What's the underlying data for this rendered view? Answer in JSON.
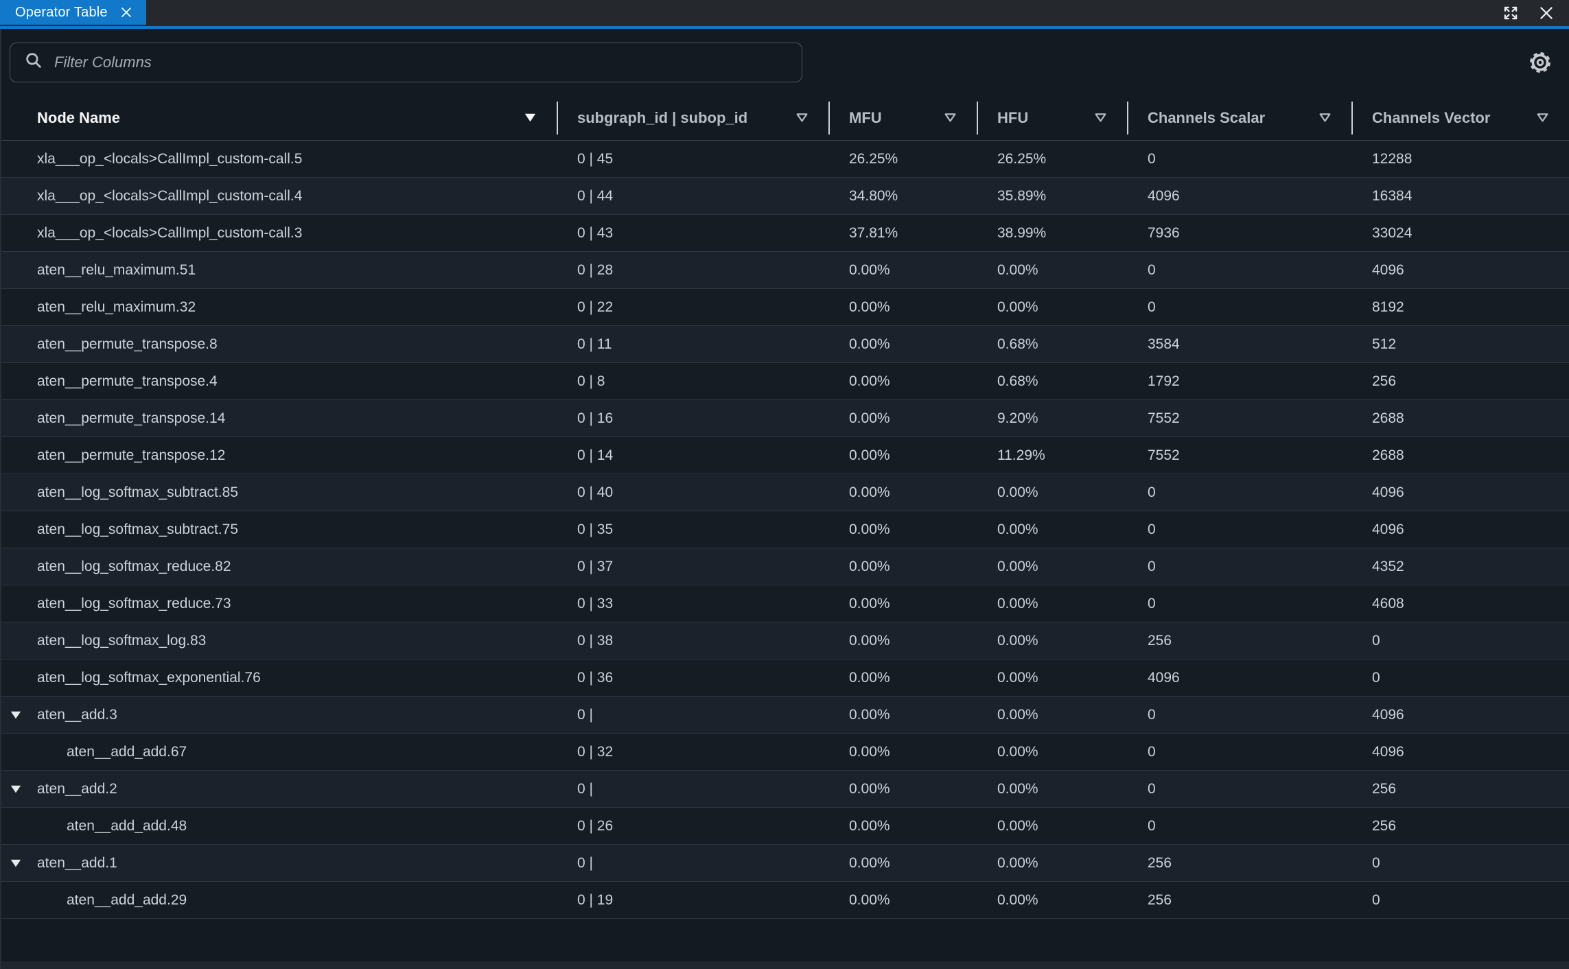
{
  "tab": {
    "title": "Operator Table"
  },
  "window_controls": {
    "expand_icon": "expand-arrows",
    "close_icon": "close-x",
    "tab_close_icon": "close-x"
  },
  "toolbar": {
    "filter_placeholder": "Filter Columns",
    "filter_value": "",
    "search_icon": "magnifier",
    "settings_icon": "gear"
  },
  "colors": {
    "accent_blue": "#1178ca",
    "panel_bg": "#141a21",
    "tabbar_bg": "#25282c",
    "row_odd": "#161c24",
    "row_even": "#1b222b",
    "header_text": "#b5bcc4",
    "header_text_active": "#f3f5f7",
    "row_text": "#ccd2d9"
  },
  "table": {
    "columns": [
      {
        "label": "Node Name",
        "sorted": true,
        "sort_icon": "triangle-down-filled"
      },
      {
        "label": "subgraph_id | subop_id",
        "sorted": false,
        "sort_icon": "triangle-down-outline"
      },
      {
        "label": "MFU",
        "sorted": false,
        "sort_icon": "triangle-down-outline"
      },
      {
        "label": "HFU",
        "sorted": false,
        "sort_icon": "triangle-down-outline"
      },
      {
        "label": "Channels Scalar",
        "sorted": false,
        "sort_icon": "triangle-down-outline"
      },
      {
        "label": "Channels Vector",
        "sorted": false,
        "sort_icon": "triangle-down-outline"
      }
    ],
    "rows": [
      {
        "type": "normal",
        "name": "xla___op_<locals>CallImpl_custom-call.5",
        "subgraph": "0 | 45",
        "mfu": "26.25%",
        "hfu": "26.25%",
        "channels_scalar": "0",
        "channels_vector": "12288"
      },
      {
        "type": "normal",
        "name": "xla___op_<locals>CallImpl_custom-call.4",
        "subgraph": "0 | 44",
        "mfu": "34.80%",
        "hfu": "35.89%",
        "channels_scalar": "4096",
        "channels_vector": "16384"
      },
      {
        "type": "normal",
        "name": "xla___op_<locals>CallImpl_custom-call.3",
        "subgraph": "0 | 43",
        "mfu": "37.81%",
        "hfu": "38.99%",
        "channels_scalar": "7936",
        "channels_vector": "33024"
      },
      {
        "type": "normal",
        "name": "aten__relu_maximum.51",
        "subgraph": "0 | 28",
        "mfu": "0.00%",
        "hfu": "0.00%",
        "channels_scalar": "0",
        "channels_vector": "4096"
      },
      {
        "type": "normal",
        "name": "aten__relu_maximum.32",
        "subgraph": "0 | 22",
        "mfu": "0.00%",
        "hfu": "0.00%",
        "channels_scalar": "0",
        "channels_vector": "8192"
      },
      {
        "type": "normal",
        "name": "aten__permute_transpose.8",
        "subgraph": "0 | 11",
        "mfu": "0.00%",
        "hfu": "0.68%",
        "channels_scalar": "3584",
        "channels_vector": "512"
      },
      {
        "type": "normal",
        "name": "aten__permute_transpose.4",
        "subgraph": "0 | 8",
        "mfu": "0.00%",
        "hfu": "0.68%",
        "channels_scalar": "1792",
        "channels_vector": "256"
      },
      {
        "type": "normal",
        "name": "aten__permute_transpose.14",
        "subgraph": "0 | 16",
        "mfu": "0.00%",
        "hfu": "9.20%",
        "channels_scalar": "7552",
        "channels_vector": "2688"
      },
      {
        "type": "normal",
        "name": "aten__permute_transpose.12",
        "subgraph": "0 | 14",
        "mfu": "0.00%",
        "hfu": "11.29%",
        "channels_scalar": "7552",
        "channels_vector": "2688"
      },
      {
        "type": "normal",
        "name": "aten__log_softmax_subtract.85",
        "subgraph": "0 | 40",
        "mfu": "0.00%",
        "hfu": "0.00%",
        "channels_scalar": "0",
        "channels_vector": "4096"
      },
      {
        "type": "normal",
        "name": "aten__log_softmax_subtract.75",
        "subgraph": "0 | 35",
        "mfu": "0.00%",
        "hfu": "0.00%",
        "channels_scalar": "0",
        "channels_vector": "4096"
      },
      {
        "type": "normal",
        "name": "aten__log_softmax_reduce.82",
        "subgraph": "0 | 37",
        "mfu": "0.00%",
        "hfu": "0.00%",
        "channels_scalar": "0",
        "channels_vector": "4352"
      },
      {
        "type": "normal",
        "name": "aten__log_softmax_reduce.73",
        "subgraph": "0 | 33",
        "mfu": "0.00%",
        "hfu": "0.00%",
        "channels_scalar": "0",
        "channels_vector": "4608"
      },
      {
        "type": "normal",
        "name": "aten__log_softmax_log.83",
        "subgraph": "0 | 38",
        "mfu": "0.00%",
        "hfu": "0.00%",
        "channels_scalar": "256",
        "channels_vector": "0"
      },
      {
        "type": "normal",
        "name": "aten__log_softmax_exponential.76",
        "subgraph": "0 | 36",
        "mfu": "0.00%",
        "hfu": "0.00%",
        "channels_scalar": "4096",
        "channels_vector": "0"
      },
      {
        "type": "parent",
        "name": "aten__add.3",
        "subgraph": "0 |",
        "mfu": "0.00%",
        "hfu": "0.00%",
        "channels_scalar": "0",
        "channels_vector": "4096"
      },
      {
        "type": "child",
        "name": "aten__add_add.67",
        "subgraph": "0 | 32",
        "mfu": "0.00%",
        "hfu": "0.00%",
        "channels_scalar": "0",
        "channels_vector": "4096"
      },
      {
        "type": "parent",
        "name": "aten__add.2",
        "subgraph": "0 |",
        "mfu": "0.00%",
        "hfu": "0.00%",
        "channels_scalar": "0",
        "channels_vector": "256"
      },
      {
        "type": "child",
        "name": "aten__add_add.48",
        "subgraph": "0 | 26",
        "mfu": "0.00%",
        "hfu": "0.00%",
        "channels_scalar": "0",
        "channels_vector": "256"
      },
      {
        "type": "parent",
        "name": "aten__add.1",
        "subgraph": "0 |",
        "mfu": "0.00%",
        "hfu": "0.00%",
        "channels_scalar": "256",
        "channels_vector": "0"
      },
      {
        "type": "child",
        "name": "aten__add_add.29",
        "subgraph": "0 | 19",
        "mfu": "0.00%",
        "hfu": "0.00%",
        "channels_scalar": "256",
        "channels_vector": "0"
      }
    ]
  }
}
